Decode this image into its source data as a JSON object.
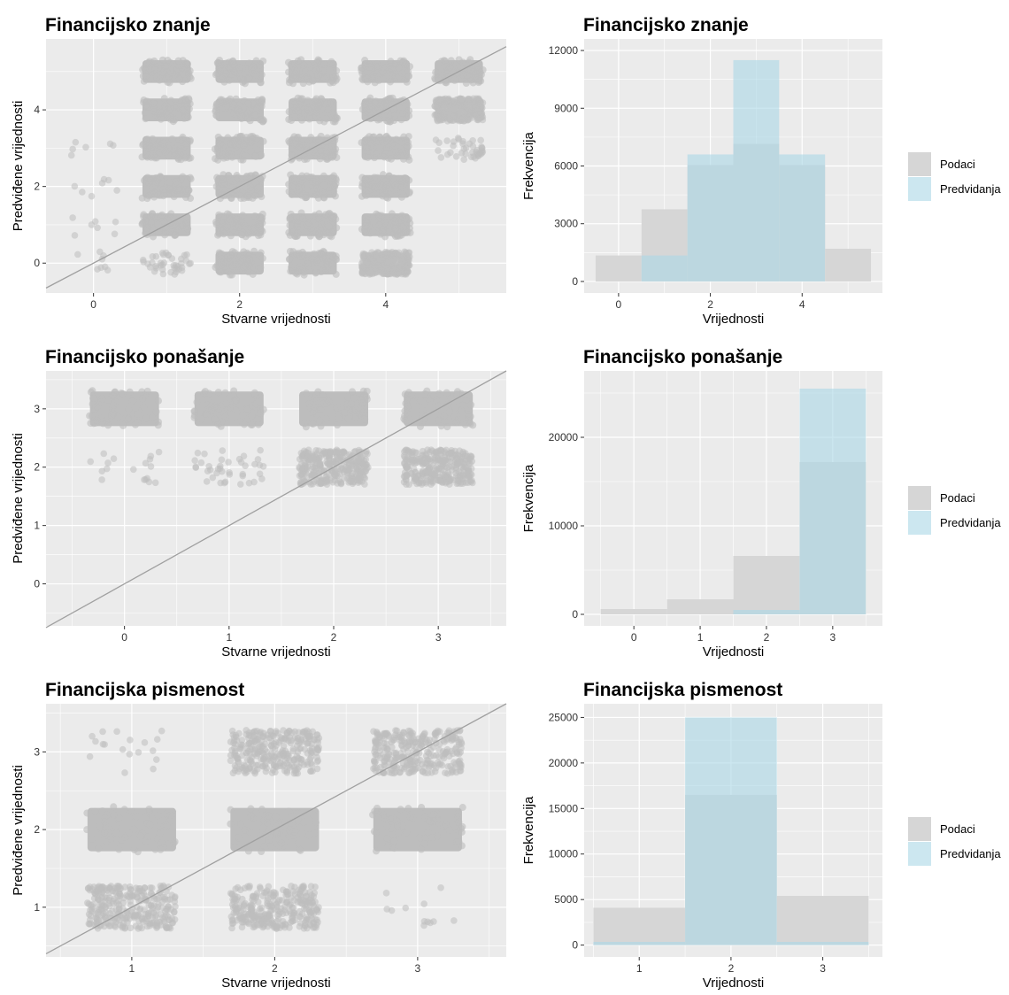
{
  "colors": {
    "panel_bg": "#ebebeb",
    "grid": "#ffffff",
    "points": "#bdbdbd",
    "reference_line": "#a0a0a0",
    "podaci_fill": "#d6d6d6",
    "predvidanja_fill": "#add8e6"
  },
  "chart_data": [
    {
      "type": "scatter",
      "title": "Financijsko znanje",
      "xlabel": "Stvarne vrijednosti",
      "ylabel": "Predviđene vrijednosti",
      "xlim": [
        -0.65,
        5.65
      ],
      "ylim": [
        -0.78,
        5.85
      ],
      "xticks": [
        0,
        2,
        4
      ],
      "yticks": [
        0,
        2,
        4
      ],
      "reference_line": "y = x",
      "jitter": 0.33,
      "point_density": [
        [
          8,
          40,
          1000,
          1000,
          300,
          0
        ],
        [
          7,
          1000,
          1000,
          1000,
          1000,
          0
        ],
        [
          7,
          1000,
          1000,
          1000,
          1000,
          0
        ],
        [
          6,
          1000,
          1000,
          1000,
          1000,
          40
        ],
        [
          0,
          1000,
          1000,
          1000,
          1000,
          300
        ],
        [
          0,
          1000,
          1000,
          1000,
          1000,
          1000
        ]
      ]
    },
    {
      "type": "bar",
      "title": "Financijsko znanje",
      "xlabel": "Vrijednosti",
      "ylabel": "Frekvencija",
      "xticks": [
        0,
        2,
        4
      ],
      "xlim": [
        -0.75,
        5.75
      ],
      "ylim": [
        -600,
        12600
      ],
      "yticks": [
        0,
        3000,
        6000,
        9000,
        12000
      ],
      "categories": [
        0,
        1,
        2,
        3,
        4,
        5
      ],
      "series": [
        {
          "name": "Podaci",
          "values": [
            1350,
            3750,
            6050,
            7150,
            6050,
            1700
          ]
        },
        {
          "name": "Predvidanja",
          "values": [
            0,
            1350,
            6600,
            11500,
            6600,
            0
          ]
        }
      ],
      "legend": "right"
    },
    {
      "type": "scatter",
      "title": "Financijsko ponašanje",
      "xlabel": "Stvarne vrijednosti",
      "ylabel": "Predviđene vrijednosti",
      "xlim": [
        -0.75,
        3.65
      ],
      "ylim": [
        -0.72,
        3.65
      ],
      "xticks": [
        0,
        1,
        2,
        3
      ],
      "yticks": [
        0,
        1,
        2,
        3
      ],
      "reference_line": "y = x",
      "jitter": 0.33,
      "point_density": [
        [
          0,
          0,
          0,
          0
        ],
        [
          0,
          0,
          0,
          0
        ],
        [
          18,
          40,
          300,
          300
        ],
        [
          1000,
          1000,
          1000,
          1000
        ]
      ]
    },
    {
      "type": "bar",
      "title": "Financijsko ponašanje",
      "xlabel": "Vrijednosti",
      "ylabel": "Frekvencija",
      "xticks": [
        0,
        1,
        2,
        3
      ],
      "xlim": [
        -0.75,
        3.75
      ],
      "ylim": [
        -1300,
        27500
      ],
      "yticks": [
        0,
        10000,
        20000
      ],
      "categories": [
        0,
        1,
        2,
        3
      ],
      "series": [
        {
          "name": "Podaci",
          "values": [
            600,
            1700,
            6600,
            17200
          ]
        },
        {
          "name": "Predvidanja",
          "values": [
            0,
            0,
            500,
            25500
          ]
        }
      ],
      "legend": "right"
    },
    {
      "type": "scatter",
      "title": "Financijska pismenost",
      "xlabel": "Stvarne vrijednosti",
      "ylabel": "Predviđene vrijednosti",
      "xlim": [
        0.4,
        3.62
      ],
      "ylim": [
        0.36,
        3.62
      ],
      "xticks": [
        1,
        2,
        3
      ],
      "yticks": [
        1,
        2,
        3
      ],
      "reference_line": "y = x",
      "jitter": 0.31,
      "point_density": [
        [
          300,
          300,
          12
        ],
        [
          1000,
          1000,
          1000
        ],
        [
          18,
          300,
          300
        ]
      ]
    },
    {
      "type": "bar",
      "title": "Financijska pismenost",
      "xlabel": "Vrijednosti",
      "ylabel": "Frekvencija",
      "xticks": [
        1,
        2,
        3
      ],
      "xlim": [
        0.4,
        3.65
      ],
      "ylim": [
        -1300,
        26500
      ],
      "yticks": [
        0,
        5000,
        10000,
        15000,
        20000,
        25000
      ],
      "categories": [
        1,
        2,
        3
      ],
      "series": [
        {
          "name": "Podaci",
          "values": [
            4100,
            16500,
            5400
          ]
        },
        {
          "name": "Predvidanja",
          "values": [
            350,
            25000,
            350
          ]
        }
      ],
      "legend": "right"
    }
  ],
  "legend": {
    "items": [
      "Podaci",
      "Predvidanja"
    ]
  }
}
